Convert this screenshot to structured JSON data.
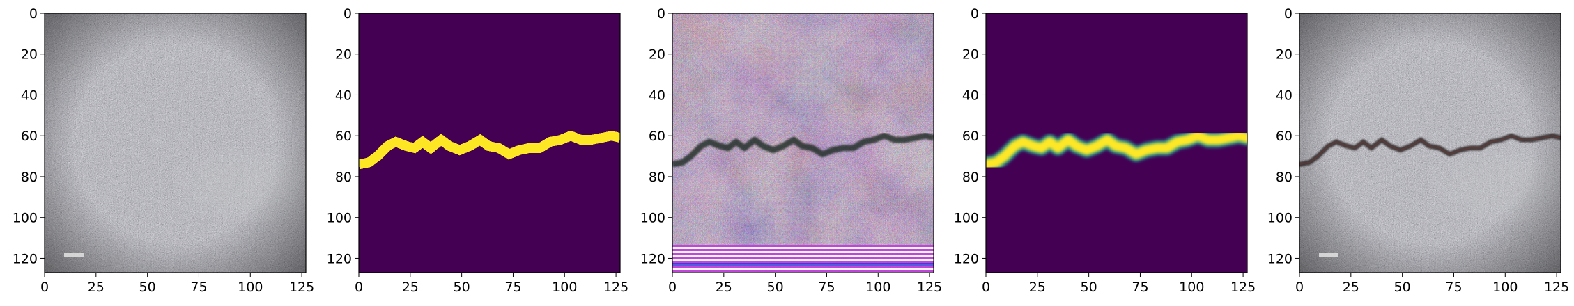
{
  "figure": {
    "panels": [
      {
        "name": "concrete-photo",
        "content": "photo"
      },
      {
        "name": "crack-mask",
        "content": "mask"
      },
      {
        "name": "generated-crack-image",
        "content": "generated"
      },
      {
        "name": "soft-crack-mask",
        "content": "soft-mask"
      },
      {
        "name": "synthesized-crack-photo",
        "content": "photo-with-crack"
      }
    ],
    "axes": {
      "xlim": [
        0,
        127
      ],
      "ylim": [
        127,
        0
      ],
      "x_ticks": [
        "0",
        "25",
        "50",
        "75",
        "100",
        "125"
      ],
      "y_ticks": [
        "0",
        "20",
        "40",
        "60",
        "80",
        "100",
        "120"
      ]
    },
    "colors": {
      "mask_background": "#440154",
      "mask_foreground": "#fde725",
      "mask_edge": "#21918c"
    },
    "crack_path": [
      {
        "x": 0,
        "y": 74
      },
      {
        "x": 5,
        "y": 73
      },
      {
        "x": 9,
        "y": 70
      },
      {
        "x": 14,
        "y": 65
      },
      {
        "x": 18,
        "y": 63
      },
      {
        "x": 23,
        "y": 65
      },
      {
        "x": 27,
        "y": 66
      },
      {
        "x": 31,
        "y": 63
      },
      {
        "x": 35,
        "y": 66
      },
      {
        "x": 40,
        "y": 62
      },
      {
        "x": 44,
        "y": 65
      },
      {
        "x": 49,
        "y": 67
      },
      {
        "x": 54,
        "y": 65
      },
      {
        "x": 59,
        "y": 62
      },
      {
        "x": 63,
        "y": 65
      },
      {
        "x": 68,
        "y": 66
      },
      {
        "x": 73,
        "y": 69
      },
      {
        "x": 78,
        "y": 67
      },
      {
        "x": 83,
        "y": 66
      },
      {
        "x": 88,
        "y": 66
      },
      {
        "x": 93,
        "y": 63
      },
      {
        "x": 98,
        "y": 62
      },
      {
        "x": 103,
        "y": 60
      },
      {
        "x": 108,
        "y": 62
      },
      {
        "x": 113,
        "y": 62
      },
      {
        "x": 118,
        "y": 61
      },
      {
        "x": 123,
        "y": 60
      },
      {
        "x": 127,
        "y": 61
      }
    ]
  }
}
